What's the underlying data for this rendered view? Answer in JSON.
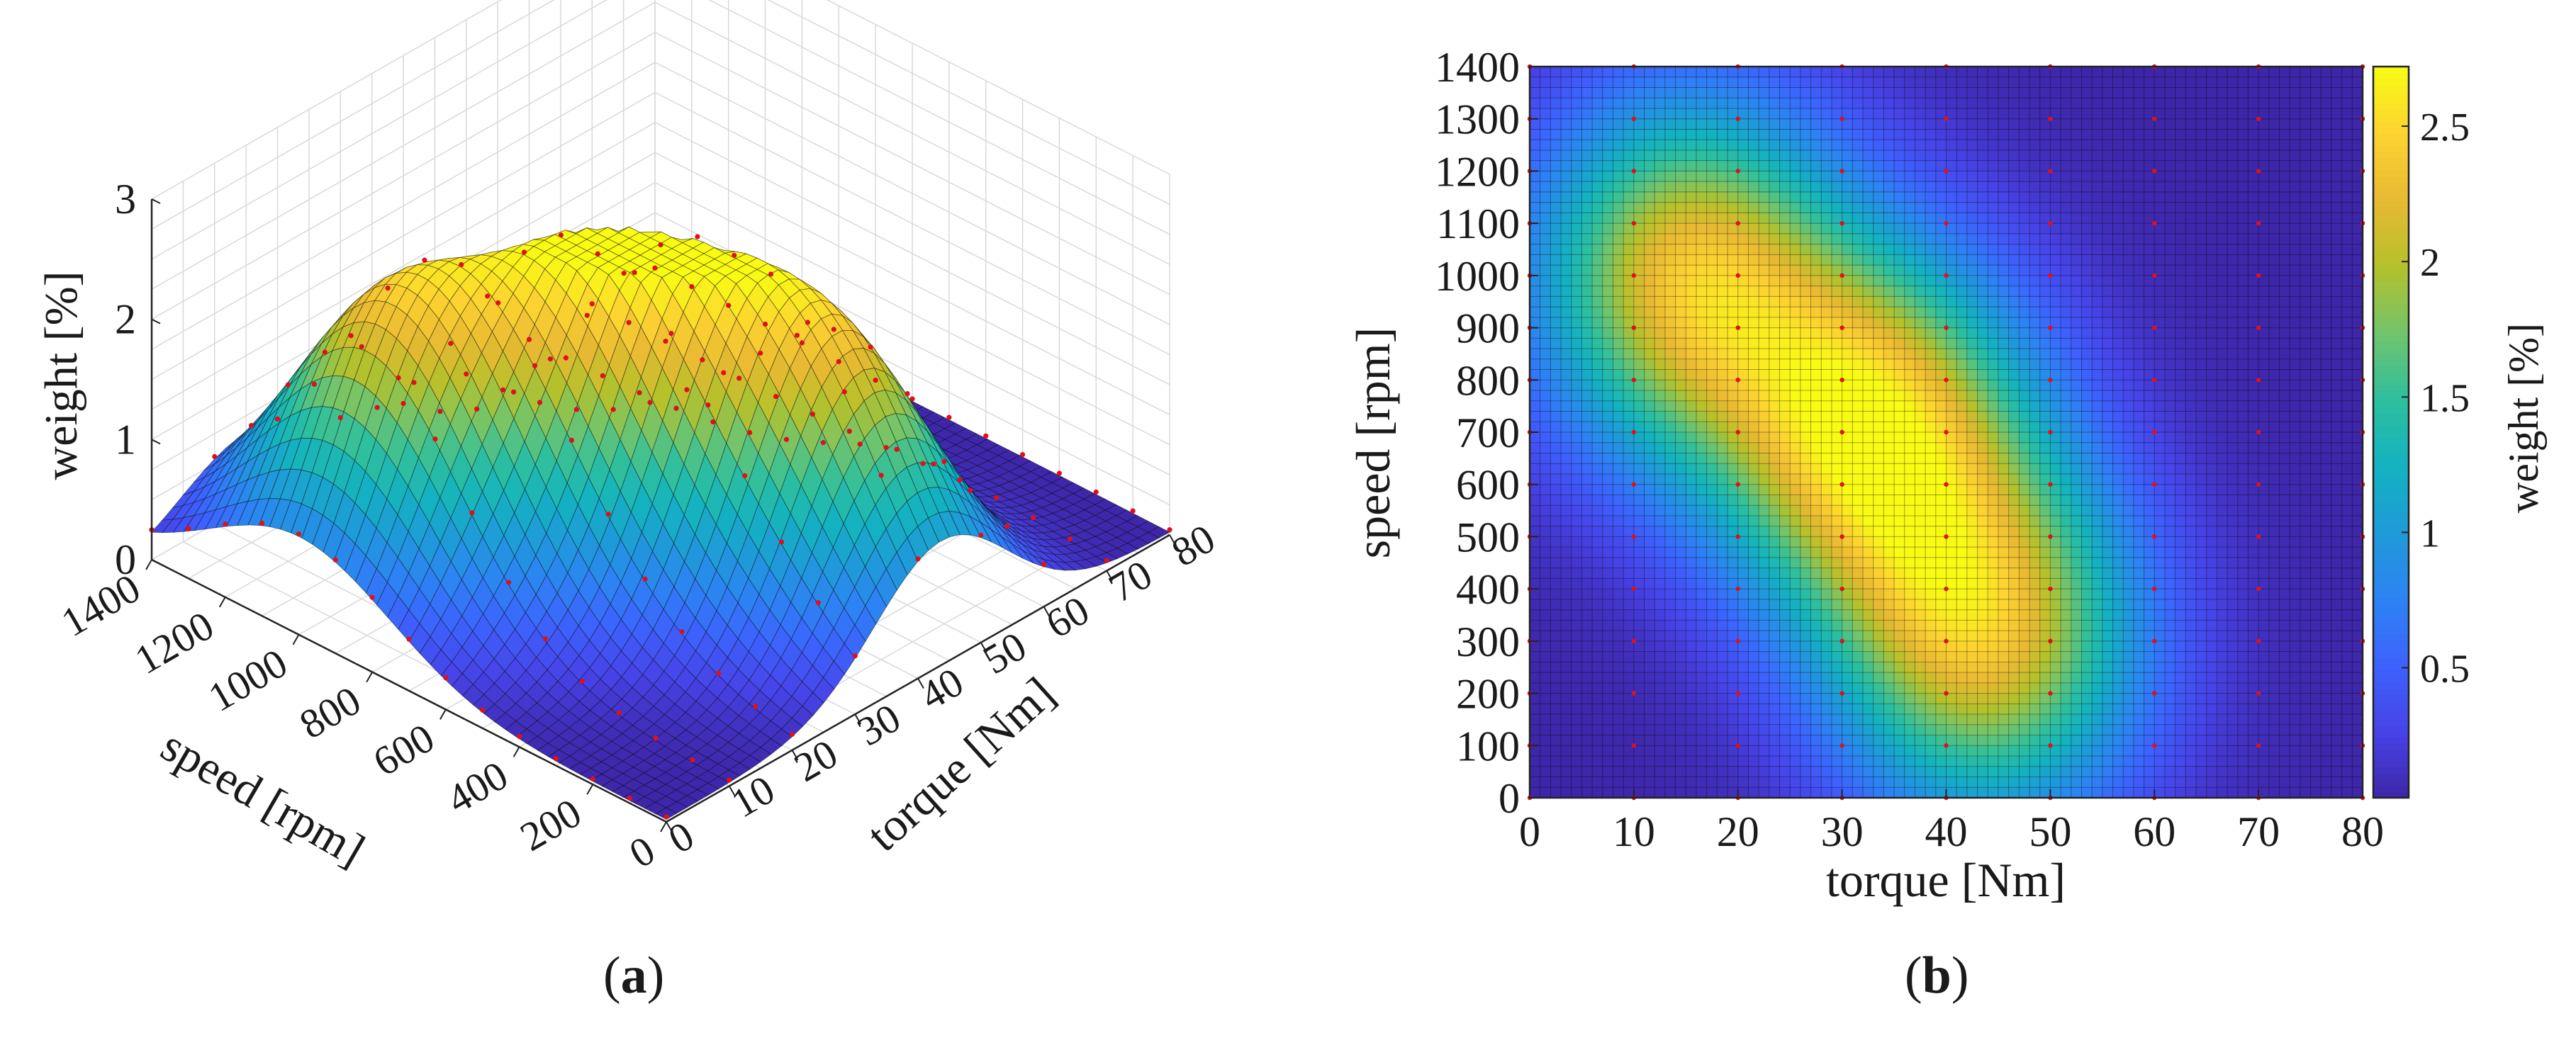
{
  "panels": [
    {
      "paren_open": "(",
      "letter": "a",
      "paren_close": ")"
    },
    {
      "paren_open": "(",
      "letter": "b",
      "paren_close": ")"
    }
  ],
  "chart_data": [
    {
      "type": "surface",
      "panel": "a",
      "xlabel": "torque [Nm]",
      "ylabel": "speed [rpm]",
      "zlabel": "weight [%]",
      "x_ticks": [
        0,
        10,
        20,
        30,
        40,
        50,
        60,
        70,
        80
      ],
      "y_ticks": [
        0,
        200,
        400,
        600,
        800,
        1000,
        1200,
        1400
      ],
      "z_ticks": [
        0,
        1,
        2,
        3
      ],
      "xlim": [
        0,
        80
      ],
      "ylim": [
        0,
        1400
      ],
      "zlim": [
        0,
        3
      ],
      "grid": true,
      "colormap": [
        "#3e26a8",
        "#4743e7",
        "#3d62fd",
        "#2d83f3",
        "#1f9ad9",
        "#14b2c0",
        "#2ebf9e",
        "#72c46c",
        "#b5c12b",
        "#e8b933",
        "#fcd331",
        "#f9fb15"
      ],
      "sample_points_color": "#e0101a",
      "sample_points_x": [
        0,
        10,
        20,
        30,
        40,
        50,
        60,
        70,
        80
      ],
      "sample_points_y": [
        0,
        100,
        200,
        300,
        400,
        500,
        600,
        700,
        800,
        900,
        1000,
        1100,
        1200,
        1300,
        1400
      ]
    },
    {
      "type": "heatmap",
      "panel": "b",
      "xlabel": "torque [Nm]",
      "ylabel": "speed [rpm]",
      "colorbar_label": "weight [%]",
      "x_ticks": [
        0,
        10,
        20,
        30,
        40,
        50,
        60,
        70,
        80
      ],
      "y_ticks": [
        0,
        100,
        200,
        300,
        400,
        500,
        600,
        700,
        800,
        900,
        1000,
        1100,
        1200,
        1300,
        1400
      ],
      "colorbar_ticks": [
        0.5,
        1,
        1.5,
        2,
        2.5
      ],
      "xlim": [
        0,
        80
      ],
      "ylim": [
        0,
        1400
      ],
      "clim": [
        0.02,
        2.72
      ],
      "colormap": [
        "#3e26a8",
        "#4743e7",
        "#3d62fd",
        "#2d83f3",
        "#1f9ad9",
        "#14b2c0",
        "#2ebf9e",
        "#72c46c",
        "#b5c12b",
        "#e8b933",
        "#fcd331",
        "#f9fb15"
      ],
      "peaks": [
        {
          "torque": 15,
          "speed": 1000,
          "weight": 2.4
        },
        {
          "torque": 33,
          "speed": 700,
          "weight": 2.6
        },
        {
          "torque": 44,
          "speed": 300,
          "weight": 2.3
        }
      ],
      "sample_points_color": "#e0101a",
      "sample_points_x": [
        0,
        10,
        20,
        30,
        40,
        50,
        60,
        70,
        80
      ],
      "sample_points_y": [
        0,
        100,
        200,
        300,
        400,
        500,
        600,
        700,
        800,
        900,
        1000,
        1100,
        1200,
        1300,
        1400
      ]
    }
  ]
}
